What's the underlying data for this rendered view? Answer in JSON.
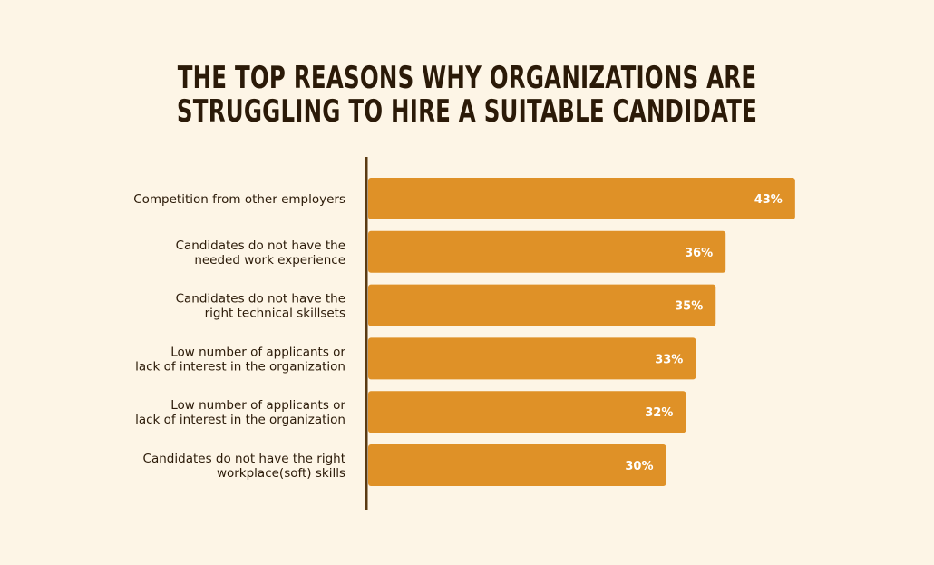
{
  "chart_data": {
    "type": "bar",
    "orientation": "horizontal",
    "title_lines": [
      "THE TOP REASONS WHY ORGANIZATIONS ARE",
      "STRUGGLING TO HIRE A SUITABLE CANDIDATE"
    ],
    "categories": [
      [
        "Competition from other employers"
      ],
      [
        "Candidates do not have the",
        "needed work experience"
      ],
      [
        "Candidates do not have the",
        "right technical skillsets"
      ],
      [
        "Low number of applicants or",
        "lack of interest in the organization"
      ],
      [
        "Low number of applicants or",
        "lack of interest in the organization"
      ],
      [
        "Candidates do not have the right",
        "workplace(soft) skills"
      ]
    ],
    "values": [
      43,
      36,
      35,
      33,
      32,
      30
    ],
    "value_labels": [
      "43%",
      "36%",
      "35%",
      "33%",
      "32%",
      "30%"
    ],
    "xlabel": "",
    "ylabel": "",
    "grid": false,
    "legend": "none",
    "bar_color": "#df9127",
    "axis_color": "#5a3a12",
    "text_color": "#2b1a08",
    "value_label_color": "#ffffff",
    "background_color": "#fdf5e6"
  }
}
